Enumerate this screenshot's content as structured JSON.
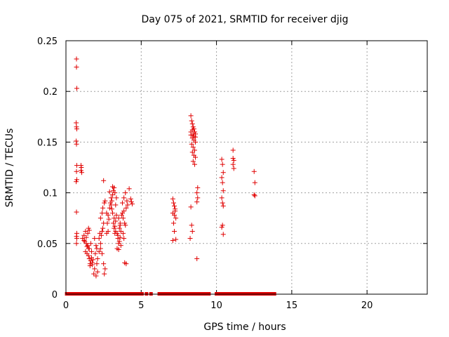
{
  "chart_data": {
    "type": "scatter",
    "title": "Day 075 of 2021, SRMTID for receiver djig",
    "xlabel": "GPS time / hours",
    "ylabel": "SRMTID / TECUs",
    "xlim": [
      0,
      24
    ],
    "ylim": [
      0,
      0.25
    ],
    "x_ticks": [
      "0",
      "5",
      "10",
      "15",
      "20"
    ],
    "y_ticks": [
      "0",
      "0.05",
      "0.1",
      "0.15",
      "0.2",
      "0.25"
    ],
    "grid": true,
    "legend": "none",
    "marker": "plus",
    "color": "#e00000",
    "series": [
      {
        "x": [
          0.7,
          0.7,
          0.72,
          0.68,
          0.7,
          0.72,
          0.68,
          0.7,
          0.72,
          0.7,
          0.72,
          0.68,
          0.7,
          0.72,
          0.7,
          0.72,
          0.7,
          1.0,
          1.02,
          1.0,
          1.05,
          1.1,
          1.2,
          1.25,
          1.3,
          1.35,
          1.4,
          1.45,
          1.5,
          1.3,
          1.4,
          1.5,
          1.2,
          1.35,
          1.45,
          1.55,
          1.5,
          1.55,
          1.6,
          1.65,
          1.7,
          1.75,
          1.6,
          1.7,
          1.8,
          1.55,
          1.65,
          1.75,
          1.85,
          1.9,
          2.0,
          2.05,
          2.1,
          1.95,
          2.0,
          2.1,
          1.9,
          2.05,
          2.2,
          2.25,
          2.3,
          2.35,
          2.4,
          2.5,
          2.2,
          2.3,
          2.4,
          2.45,
          2.55,
          2.6,
          2.5,
          2.3,
          2.4,
          2.5,
          2.6,
          2.45,
          2.55,
          2.7,
          2.8,
          2.9,
          2.75,
          2.85,
          2.95,
          3.0,
          2.7,
          2.8,
          3.0,
          2.9,
          3.05,
          3.1,
          3.15,
          3.2,
          3.25,
          3.3,
          3.1,
          3.2,
          3.3,
          3.35,
          3.15,
          3.25,
          3.05,
          3.2,
          3.3,
          3.35,
          3.1,
          3.25,
          3.4,
          3.45,
          3.5,
          3.55,
          3.6,
          3.65,
          3.4,
          3.5,
          3.6,
          3.45,
          3.55,
          3.65,
          3.5,
          3.6,
          3.7,
          3.75,
          3.8,
          3.85,
          3.9,
          3.95,
          4.0,
          3.75,
          3.85,
          3.95,
          3.8,
          3.9,
          4.0,
          3.85,
          4.05,
          4.1,
          4.2,
          4.3,
          4.35,
          4.4,
          7.1,
          7.15,
          7.2,
          7.25,
          7.1,
          7.2,
          7.3,
          7.15,
          7.25,
          7.2,
          7.3,
          7.1,
          8.3,
          8.35,
          8.4,
          8.45,
          8.5,
          8.55,
          8.6,
          8.3,
          8.4,
          8.5,
          8.6,
          8.35,
          8.45,
          8.55,
          8.4,
          8.5,
          8.6,
          8.45,
          8.55,
          8.3,
          8.4,
          8.5,
          8.6,
          8.45,
          8.3,
          8.35,
          8.4,
          8.25,
          8.7,
          8.75,
          8.7,
          8.75,
          8.7,
          10.35,
          10.4,
          10.45,
          10.35,
          10.4,
          10.45,
          10.35,
          10.4,
          10.45,
          10.4,
          10.35,
          10.45,
          11.1,
          11.15,
          11.1,
          11.15,
          11.1,
          12.5,
          12.55,
          12.5,
          12.55
        ],
        "y": [
          0.232,
          0.224,
          0.203,
          0.169,
          0.165,
          0.163,
          0.151,
          0.148,
          0.127,
          0.121,
          0.113,
          0.111,
          0.081,
          0.06,
          0.057,
          0.055,
          0.05,
          0.127,
          0.125,
          0.122,
          0.12,
          0.055,
          0.058,
          0.052,
          0.062,
          0.05,
          0.047,
          0.06,
          0.065,
          0.042,
          0.04,
          0.045,
          0.053,
          0.056,
          0.048,
          0.063,
          0.038,
          0.035,
          0.03,
          0.033,
          0.036,
          0.031,
          0.028,
          0.042,
          0.034,
          0.045,
          0.05,
          0.029,
          0.02,
          0.025,
          0.018,
          0.03,
          0.022,
          0.04,
          0.048,
          0.035,
          0.055,
          0.045,
          0.055,
          0.06,
          0.05,
          0.058,
          0.062,
          0.07,
          0.042,
          0.045,
          0.04,
          0.085,
          0.09,
          0.092,
          0.112,
          0.075,
          0.08,
          0.03,
          0.025,
          0.065,
          0.02,
          0.08,
          0.078,
          0.085,
          0.07,
          0.074,
          0.09,
          0.095,
          0.06,
          0.062,
          0.088,
          0.101,
          0.092,
          0.098,
          0.102,
          0.105,
          0.1,
          0.088,
          0.08,
          0.075,
          0.072,
          0.078,
          0.07,
          0.067,
          0.084,
          0.065,
          0.062,
          0.095,
          0.106,
          0.06,
          0.06,
          0.055,
          0.05,
          0.065,
          0.07,
          0.048,
          0.045,
          0.044,
          0.056,
          0.058,
          0.052,
          0.062,
          0.075,
          0.068,
          0.078,
          0.08,
          0.075,
          0.082,
          0.07,
          0.068,
          0.085,
          0.09,
          0.095,
          0.1,
          0.06,
          0.031,
          0.03,
          0.055,
          0.092,
          0.088,
          0.104,
          0.094,
          0.091,
          0.089,
          0.094,
          0.09,
          0.087,
          0.082,
          0.08,
          0.078,
          0.075,
          0.07,
          0.084,
          0.062,
          0.054,
          0.053,
          0.176,
          0.171,
          0.168,
          0.165,
          0.163,
          0.16,
          0.158,
          0.157,
          0.154,
          0.152,
          0.15,
          0.148,
          0.145,
          0.142,
          0.14,
          0.137,
          0.135,
          0.131,
          0.128,
          0.16,
          0.162,
          0.156,
          0.155,
          0.158,
          0.086,
          0.068,
          0.062,
          0.055,
          0.035,
          0.105,
          0.1,
          0.095,
          0.091,
          0.133,
          0.128,
          0.12,
          0.115,
          0.11,
          0.102,
          0.095,
          0.09,
          0.087,
          0.068,
          0.066,
          0.059,
          0.142,
          0.132,
          0.128,
          0.124,
          0.134,
          0.121,
          0.11,
          0.098,
          0.097
        ]
      }
    ],
    "zero_flags_x": [
      0.05,
      0.15,
      0.25,
      0.35,
      0.45,
      0.55,
      0.65,
      0.75,
      0.85,
      0.95,
      1.05,
      1.15,
      1.25,
      1.35,
      1.45,
      1.55,
      1.65,
      1.75,
      1.85,
      1.95,
      2.05,
      2.15,
      2.25,
      2.35,
      2.45,
      2.55,
      2.65,
      2.75,
      2.85,
      2.95,
      3.05,
      3.15,
      3.25,
      3.35,
      3.45,
      3.55,
      3.65,
      3.75,
      3.85,
      3.95,
      4.05,
      4.15,
      4.25,
      4.35,
      4.5,
      4.65,
      4.85,
      5.05,
      5.35,
      5.65,
      6.2,
      6.35,
      6.5,
      6.65,
      6.8,
      6.95,
      7.1,
      7.25,
      7.4,
      7.55,
      7.7,
      7.85,
      8.0,
      8.15,
      8.3,
      8.45,
      8.6,
      8.75,
      8.9,
      9.05,
      9.2,
      9.35,
      9.5,
      10.0,
      10.15,
      10.3,
      10.45,
      10.6,
      10.75,
      10.9,
      11.05,
      11.2,
      11.35,
      11.5,
      11.65,
      11.8,
      11.95,
      12.1,
      12.25,
      12.4,
      12.55,
      12.7,
      12.85,
      13.0,
      13.15,
      13.3,
      13.45,
      13.6,
      13.75,
      13.85
    ]
  }
}
